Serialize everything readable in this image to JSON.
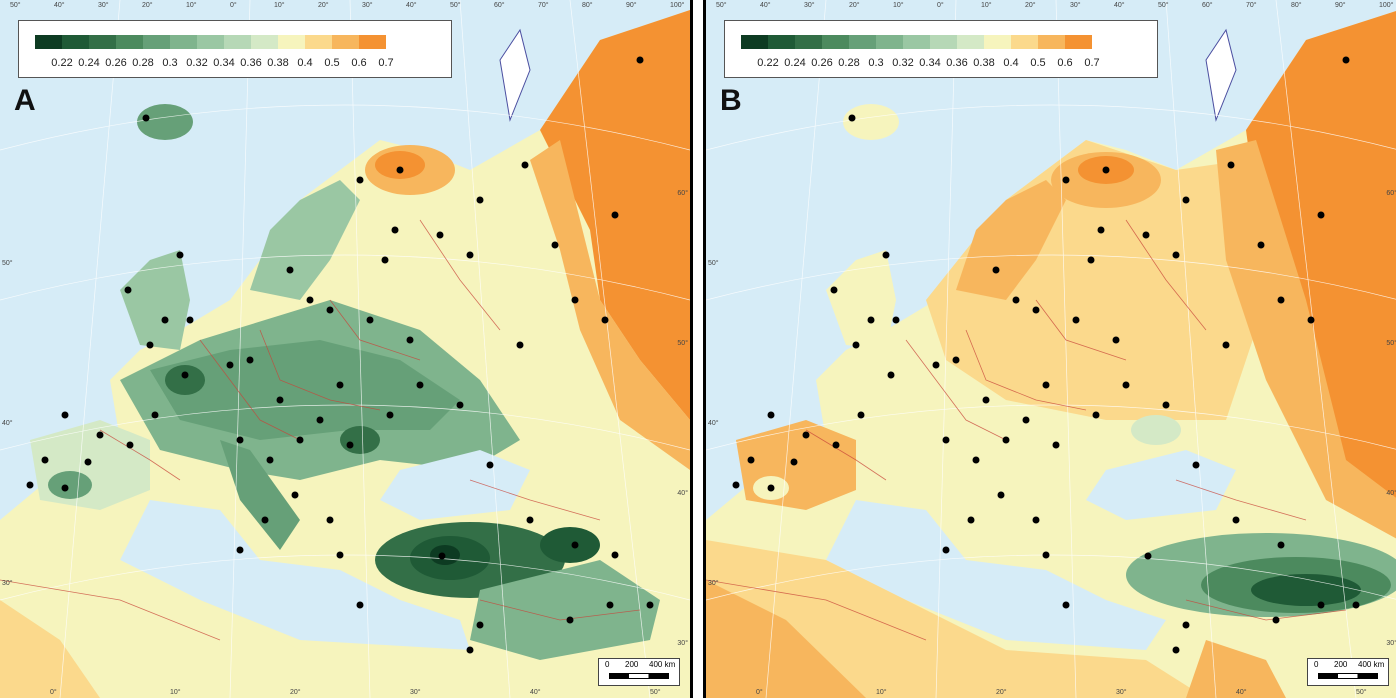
{
  "panels": [
    {
      "letter": "A"
    },
    {
      "letter": "B"
    }
  ],
  "legend": {
    "ticks": [
      "0.22",
      "0.24",
      "0.26",
      "0.28",
      "0.3",
      "0.32",
      "0.34",
      "0.36",
      "0.38",
      "0.4",
      "0.5",
      "0.6",
      "0.7"
    ],
    "colors": [
      "#0d3b22",
      "#1f5a36",
      "#336f47",
      "#4c8a5e",
      "#66a078",
      "#7fb48d",
      "#9ac7a3",
      "#b6d8b6",
      "#d4e9c6",
      "#f6f4bd",
      "#fbd98c",
      "#f7b65d",
      "#f49232"
    ]
  },
  "scale": {
    "zero": "0",
    "mid": "200",
    "max": "400 km"
  },
  "graticule": {
    "top": [
      "50°",
      "40°",
      "30°",
      "20°",
      "10°",
      "0°",
      "10°",
      "20°",
      "30°",
      "40°",
      "50°",
      "60°",
      "70°",
      "80°",
      "90°",
      "100°"
    ],
    "bottom": [
      "0°",
      "10°",
      "20°",
      "30°",
      "40°",
      "50°"
    ],
    "left": [
      "50°",
      "40°",
      "30°"
    ],
    "right": [
      "60°",
      "50°",
      "40°",
      "30°"
    ]
  }
}
